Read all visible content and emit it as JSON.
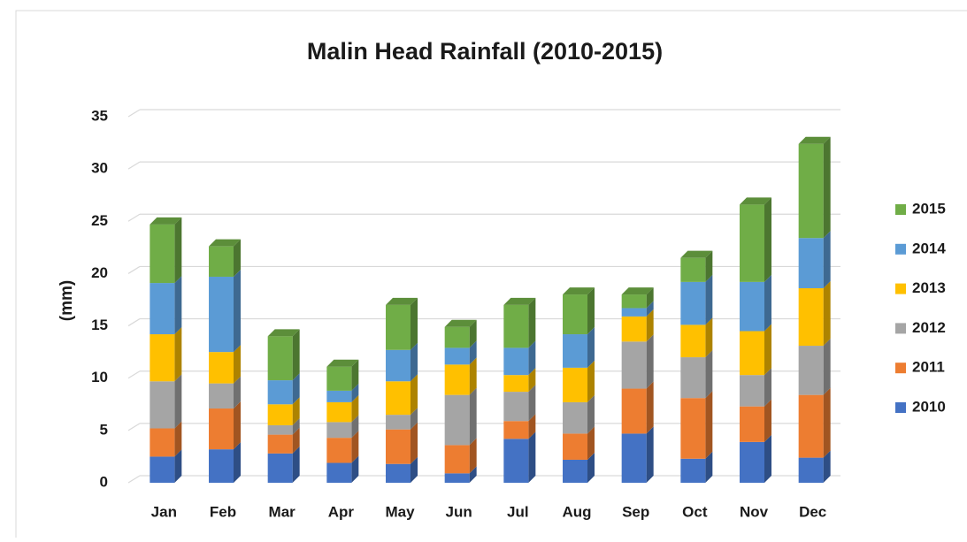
{
  "chart_data": {
    "type": "bar",
    "stacked": true,
    "title": "Malin Head Rainfall (2010-2015)",
    "y_label": "(mm)",
    "categories": [
      "Jan",
      "Feb",
      "Mar",
      "Apr",
      "May",
      "Jun",
      "Jul",
      "Aug",
      "Sep",
      "Oct",
      "Nov",
      "Dec"
    ],
    "series": [
      {
        "name": "2010",
        "color": "#4472c4",
        "values": [
          2.5,
          3.2,
          2.8,
          1.9,
          1.8,
          0.9,
          4.2,
          2.2,
          4.7,
          2.3,
          3.9,
          2.4
        ]
      },
      {
        "name": "2011",
        "color": "#ed7d31",
        "values": [
          2.7,
          3.9,
          1.8,
          2.4,
          3.3,
          2.7,
          1.7,
          2.5,
          4.3,
          5.8,
          3.4,
          6.0
        ]
      },
      {
        "name": "2012",
        "color": "#a5a5a5",
        "values": [
          4.5,
          2.4,
          0.9,
          1.5,
          1.4,
          4.8,
          2.8,
          3.0,
          4.5,
          3.9,
          3.0,
          4.7
        ]
      },
      {
        "name": "2013",
        "color": "#ffc000",
        "values": [
          4.5,
          3.0,
          2.0,
          1.9,
          3.2,
          2.9,
          1.6,
          3.3,
          2.4,
          3.1,
          4.2,
          5.5
        ]
      },
      {
        "name": "2014",
        "color": "#5b9bd5",
        "values": [
          4.9,
          7.2,
          2.3,
          1.1,
          3.0,
          1.6,
          2.6,
          3.2,
          0.8,
          4.1,
          4.7,
          4.8
        ]
      },
      {
        "name": "2015",
        "color": "#70ad47",
        "values": [
          5.6,
          2.9,
          4.2,
          2.3,
          4.3,
          2.0,
          4.1,
          3.8,
          1.3,
          2.3,
          7.4,
          9.0
        ]
      }
    ],
    "ylim": [
      0,
      35
    ],
    "yticks": [
      0,
      5,
      10,
      15,
      20,
      25,
      30,
      35
    ],
    "grid": true,
    "legend": "right"
  }
}
